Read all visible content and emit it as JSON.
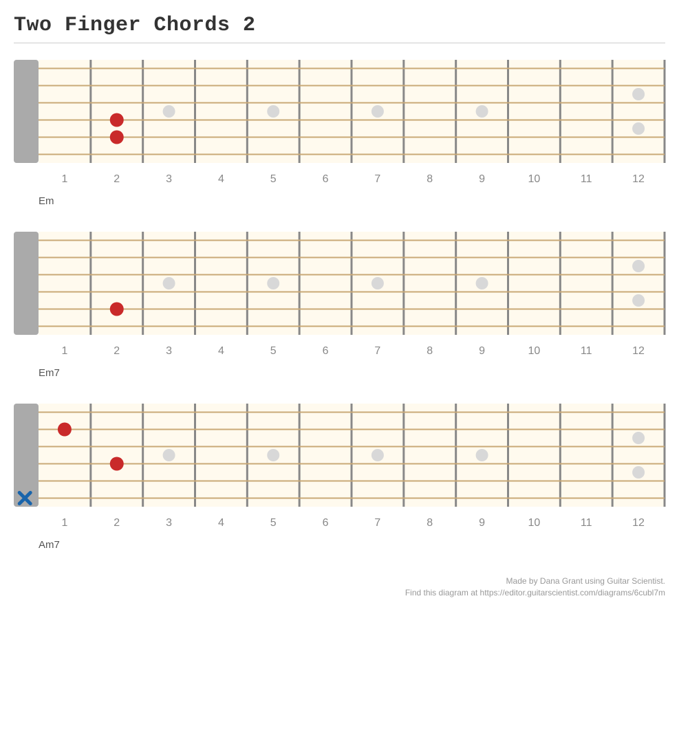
{
  "title": "Two Finger Chords 2",
  "footer": {
    "line1": "Made by Dana Grant using Guitar Scientist.",
    "line2": "Find this diagram at https://editor.guitarscientist.com/diagrams/6cubl7m"
  },
  "layout": {
    "num_frets": 12,
    "num_strings": 6,
    "nut_width": 36,
    "board_width": 910,
    "board_height": 150,
    "string_gap": 25,
    "top_string_y": 12.5,
    "string_color": "#c9a977",
    "fret_color": "#888888",
    "nut_color": "#aaaaaa",
    "board_bg": "#fffaee",
    "label_color": "#888888",
    "inlay_color": "#d8d8d8",
    "inlay_radius": 9,
    "inlay_frets": {
      "3": "single",
      "5": "single",
      "7": "single",
      "9": "single",
      "12": "double"
    },
    "finger_color": "#c92a2a",
    "finger_radius": 10,
    "mute_color": "#1864ab",
    "mute_size": 16
  },
  "diagrams": [
    {
      "name": "Em",
      "fingers": [
        {
          "fret": 2,
          "string": 4
        },
        {
          "fret": 2,
          "string": 5
        }
      ],
      "mutes": []
    },
    {
      "name": "Em7",
      "fingers": [
        {
          "fret": 2,
          "string": 5
        }
      ],
      "mutes": []
    },
    {
      "name": "Am7",
      "fingers": [
        {
          "fret": 1,
          "string": 2
        },
        {
          "fret": 2,
          "string": 4
        }
      ],
      "mutes": [
        {
          "string": 6
        }
      ]
    }
  ]
}
